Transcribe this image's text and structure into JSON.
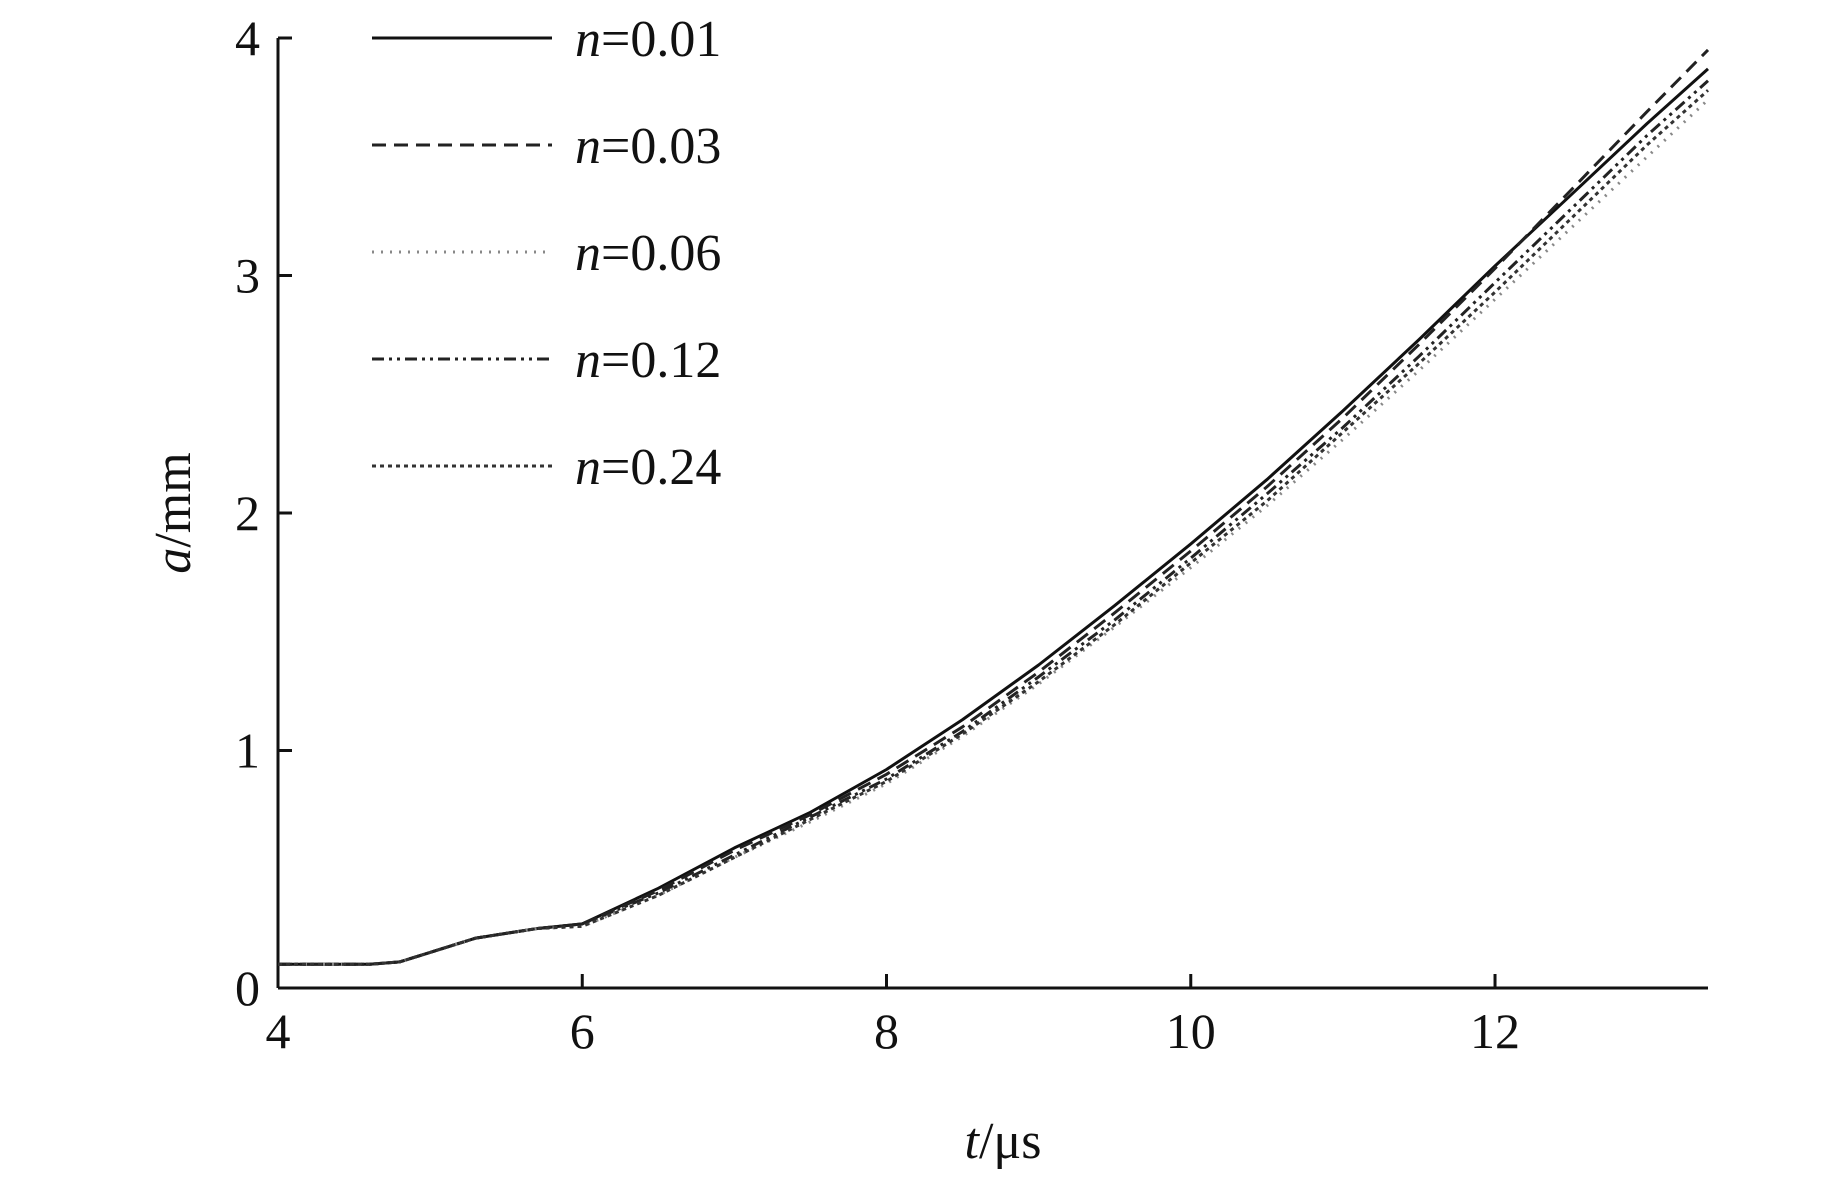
{
  "chart_data": {
    "type": "line",
    "title": "",
    "xlabel": {
      "var": "t",
      "unit": "/μs"
    },
    "ylabel": {
      "var": "a",
      "unit": "/mm"
    },
    "xlim": [
      4,
      13.4
    ],
    "ylim": [
      0,
      4
    ],
    "x_ticks": [
      "4",
      "6",
      "8",
      "10",
      "12"
    ],
    "y_ticks": [
      "0",
      "1",
      "2",
      "3",
      "4"
    ],
    "grid": false,
    "legend_position": "top-left",
    "series": [
      {
        "name": "n=0.01",
        "var": "n",
        "value": "=0.01",
        "style": "solid",
        "x": [
          4,
          4.6,
          4.8,
          5.0,
          5.3,
          5.7,
          6.0,
          6.5,
          7.0,
          7.5,
          8.0,
          8.5,
          9.0,
          9.5,
          10.0,
          10.5,
          11.0,
          11.5,
          12.0,
          12.5,
          13.0,
          13.4
        ],
        "y": [
          0.1,
          0.1,
          0.11,
          0.15,
          0.21,
          0.25,
          0.27,
          0.42,
          0.59,
          0.74,
          0.92,
          1.13,
          1.36,
          1.61,
          1.87,
          2.14,
          2.43,
          2.73,
          3.04,
          3.34,
          3.64,
          3.87
        ]
      },
      {
        "name": "n=0.03",
        "var": "n",
        "value": "=0.03",
        "style": "dashed",
        "x": [
          4,
          4.6,
          4.8,
          5.0,
          5.3,
          5.7,
          6.0,
          6.5,
          7.0,
          7.5,
          8.0,
          8.5,
          9.0,
          9.5,
          10.0,
          10.5,
          11.0,
          11.5,
          12.0,
          12.5,
          13.0,
          13.4
        ],
        "y": [
          0.1,
          0.1,
          0.11,
          0.15,
          0.21,
          0.25,
          0.27,
          0.41,
          0.58,
          0.73,
          0.9,
          1.1,
          1.33,
          1.58,
          1.84,
          2.11,
          2.4,
          2.71,
          3.03,
          3.36,
          3.69,
          3.95
        ]
      },
      {
        "name": "n=0.06",
        "var": "n",
        "value": "=0.06",
        "style": "dotted",
        "x": [
          4,
          4.6,
          4.8,
          5.0,
          5.3,
          5.7,
          6.0,
          6.5,
          7.0,
          7.5,
          8.0,
          8.5,
          9.0,
          9.5,
          10.0,
          10.5,
          11.0,
          11.5,
          12.0,
          12.5,
          13.0,
          13.4
        ],
        "y": [
          0.1,
          0.1,
          0.11,
          0.15,
          0.21,
          0.25,
          0.26,
          0.39,
          0.55,
          0.7,
          0.86,
          1.06,
          1.28,
          1.52,
          1.77,
          2.03,
          2.31,
          2.6,
          2.9,
          3.2,
          3.5,
          3.74
        ]
      },
      {
        "name": "n=0.12",
        "var": "n",
        "value": "=0.12",
        "style": "dashdotdot",
        "x": [
          4,
          4.6,
          4.8,
          5.0,
          5.3,
          5.7,
          6.0,
          6.5,
          7.0,
          7.5,
          8.0,
          8.5,
          9.0,
          9.5,
          10.0,
          10.5,
          11.0,
          11.5,
          12.0,
          12.5,
          13.0,
          13.4
        ],
        "y": [
          0.1,
          0.1,
          0.11,
          0.15,
          0.21,
          0.25,
          0.27,
          0.4,
          0.56,
          0.72,
          0.88,
          1.08,
          1.31,
          1.55,
          1.81,
          2.08,
          2.36,
          2.66,
          2.97,
          3.28,
          3.59,
          3.82
        ]
      },
      {
        "name": "n=0.24",
        "var": "n",
        "value": "=0.24",
        "style": "densedot",
        "x": [
          4,
          4.6,
          4.8,
          5.0,
          5.3,
          5.7,
          6.0,
          6.5,
          7.0,
          7.5,
          8.0,
          8.5,
          9.0,
          9.5,
          10.0,
          10.5,
          11.0,
          11.5,
          12.0,
          12.5,
          13.0,
          13.4
        ],
        "y": [
          0.1,
          0.1,
          0.11,
          0.15,
          0.21,
          0.25,
          0.26,
          0.39,
          0.55,
          0.71,
          0.87,
          1.07,
          1.29,
          1.53,
          1.79,
          2.05,
          2.34,
          2.63,
          2.93,
          3.24,
          3.55,
          3.78
        ]
      }
    ]
  }
}
